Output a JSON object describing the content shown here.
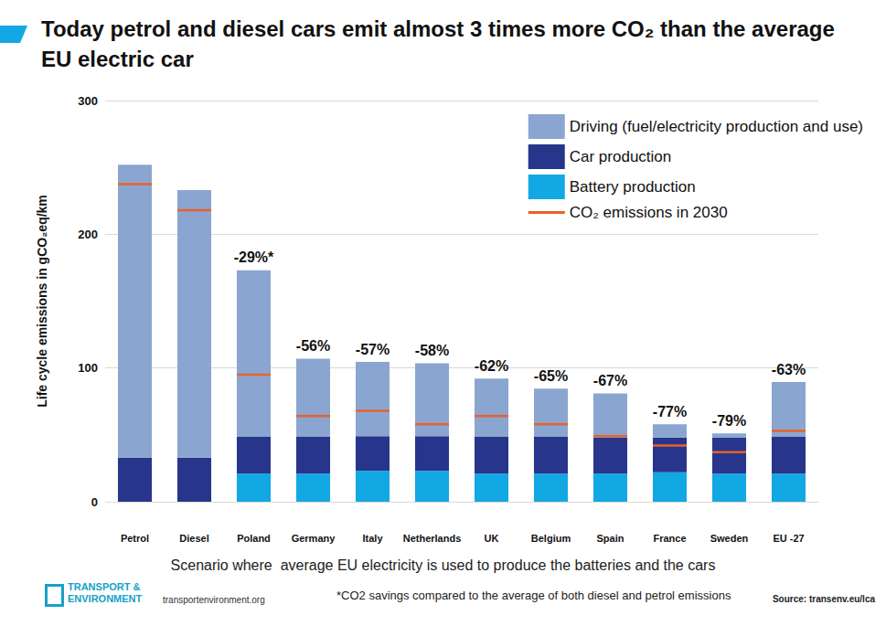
{
  "chart_data": {
    "type": "bar",
    "title": "Today petrol and diesel cars emit almost 3 times more CO₂ than the average EU electric car",
    "y_label": "Life cycle emissions in gCO₂eq/km",
    "x_note": "Scenario where  average EU electricity is used to produce the batteries and the cars",
    "footnote": "*CO2 savings compared to the average of both diesel and petrol emissions",
    "source": "Source: transenv.eu/lca",
    "branding": [
      "TRANSPORT &",
      "ENVIRONMENT",
      "transportenvironment.org"
    ],
    "categories": [
      "Petrol",
      "Diesel",
      "Poland",
      "Germany",
      "Italy",
      "Netherlands",
      "UK",
      "Belgium",
      "Spain",
      "France",
      "Sweden",
      "EU -27"
    ],
    "annotations": [
      null,
      null,
      "-29%*",
      "-56%",
      "-57%",
      "-58%",
      "-62%",
      "-65%",
      "-67%",
      "-77%",
      "-79%",
      "-63%"
    ],
    "stacked": true,
    "series": [
      {
        "name": "Driving (fuel/electricity production and use)",
        "type": "bar",
        "color": "#8aa6d0",
        "values": [
          219,
          200,
          124.5,
          58.5,
          55.5,
          54.5,
          43.5,
          36,
          33,
          10,
          3,
          41
        ]
      },
      {
        "name": "Car production",
        "type": "bar",
        "color": "#27358b",
        "values": [
          33,
          33,
          27.5,
          27.5,
          26,
          26,
          27.5,
          27.5,
          27,
          26,
          27,
          27.5
        ]
      },
      {
        "name": "Battery production",
        "type": "bar",
        "color": "#12a8e3",
        "values": [
          0,
          0,
          21,
          21,
          23,
          23,
          21,
          21,
          21,
          22,
          21,
          21
        ]
      },
      {
        "name": "CO₂ emissions in 2030",
        "type": "line",
        "marker": "dash",
        "color": "#e8622a",
        "values": [
          237.5,
          218,
          95,
          64,
          68,
          58,
          64,
          58,
          49,
          42,
          37,
          53
        ]
      }
    ],
    "ylim": [
      0,
      300
    ],
    "yticks": [
      0,
      100,
      200,
      300
    ],
    "grid": true,
    "legend": "top-right"
  }
}
